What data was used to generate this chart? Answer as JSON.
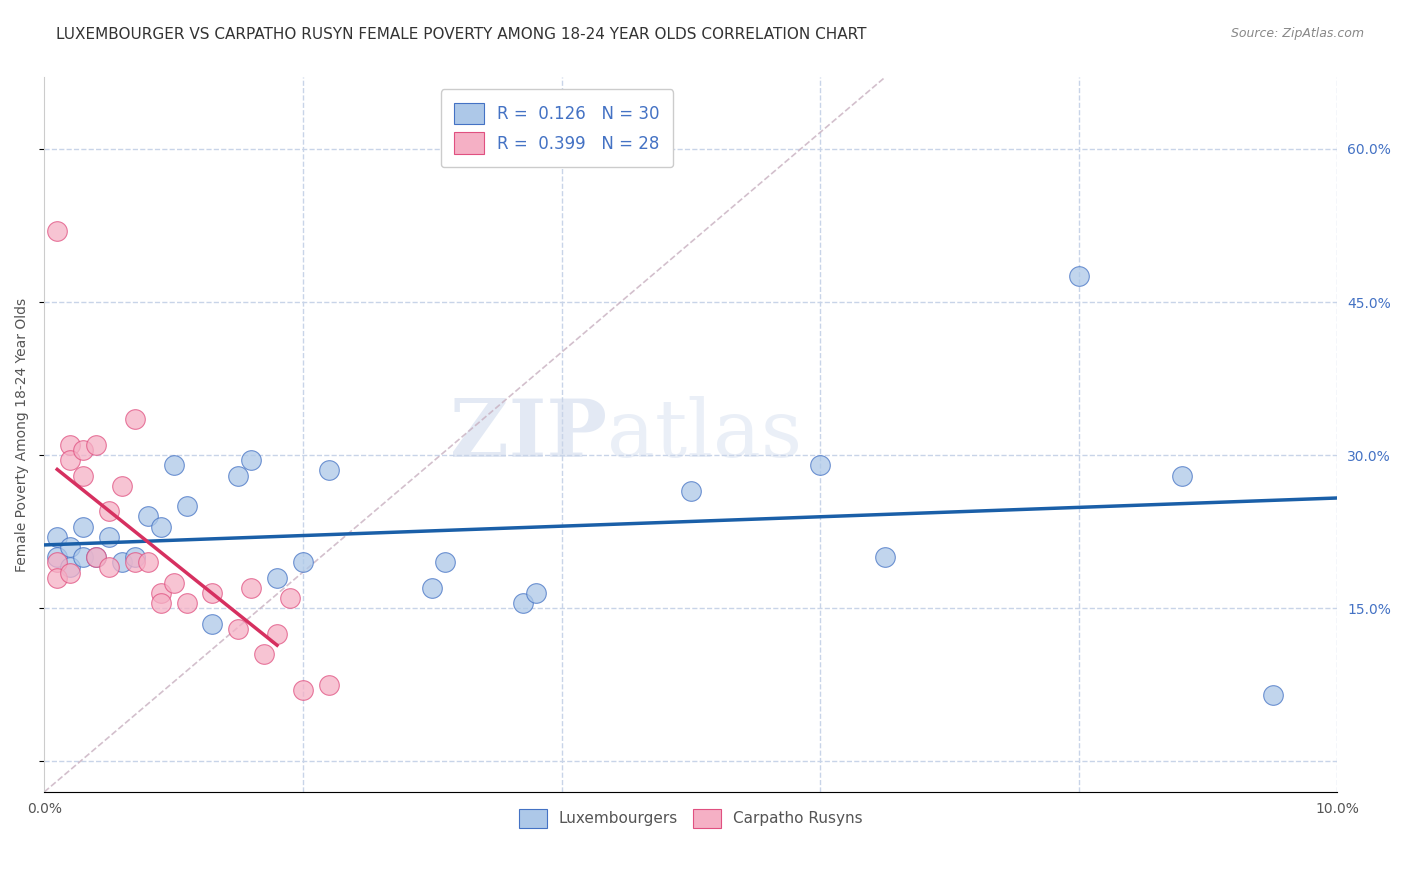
{
  "title": "LUXEMBOURGER VS CARPATHO RUSYN FEMALE POVERTY AMONG 18-24 YEAR OLDS CORRELATION CHART",
  "source": "Source: ZipAtlas.com",
  "ylabel": "Female Poverty Among 18-24 Year Olds",
  "xlim": [
    0.0,
    0.1
  ],
  "ylim": [
    -0.03,
    0.67
  ],
  "xticks": [
    0.0,
    0.02,
    0.04,
    0.06,
    0.08,
    0.1
  ],
  "xticklabels": [
    "0.0%",
    "",
    "",
    "",
    "",
    "10.0%"
  ],
  "yticks_right": [
    0.0,
    0.15,
    0.3,
    0.45,
    0.6
  ],
  "yticklabels_right": [
    "",
    "15.0%",
    "30.0%",
    "45.0%",
    "60.0%"
  ],
  "blue_R": 0.126,
  "blue_N": 30,
  "pink_R": 0.399,
  "pink_N": 28,
  "blue_fill": "#adc8e8",
  "pink_fill": "#f5b0c5",
  "blue_edge": "#4472c4",
  "pink_edge": "#e05080",
  "blue_line_color": "#1a5fa8",
  "pink_line_color": "#d63060",
  "ref_line_color": "#c8b0c0",
  "blue_scatter_x": [
    0.001,
    0.001,
    0.002,
    0.002,
    0.003,
    0.003,
    0.004,
    0.005,
    0.006,
    0.007,
    0.008,
    0.009,
    0.01,
    0.011,
    0.013,
    0.015,
    0.016,
    0.018,
    0.02,
    0.022,
    0.03,
    0.031,
    0.037,
    0.038,
    0.05,
    0.06,
    0.065,
    0.08,
    0.088,
    0.095
  ],
  "blue_scatter_y": [
    0.22,
    0.2,
    0.21,
    0.19,
    0.23,
    0.2,
    0.2,
    0.22,
    0.195,
    0.2,
    0.24,
    0.23,
    0.29,
    0.25,
    0.135,
    0.28,
    0.295,
    0.18,
    0.195,
    0.285,
    0.17,
    0.195,
    0.155,
    0.165,
    0.265,
    0.29,
    0.2,
    0.475,
    0.28,
    0.065
  ],
  "pink_scatter_x": [
    0.001,
    0.001,
    0.001,
    0.002,
    0.002,
    0.002,
    0.003,
    0.003,
    0.004,
    0.004,
    0.005,
    0.005,
    0.006,
    0.007,
    0.007,
    0.008,
    0.009,
    0.009,
    0.01,
    0.011,
    0.013,
    0.015,
    0.016,
    0.017,
    0.018,
    0.019,
    0.02,
    0.022
  ],
  "pink_scatter_y": [
    0.52,
    0.195,
    0.18,
    0.31,
    0.295,
    0.185,
    0.305,
    0.28,
    0.31,
    0.2,
    0.245,
    0.19,
    0.27,
    0.335,
    0.195,
    0.195,
    0.165,
    0.155,
    0.175,
    0.155,
    0.165,
    0.13,
    0.17,
    0.105,
    0.125,
    0.16,
    0.07,
    0.075
  ],
  "pink_line_x0": 0.001,
  "pink_line_x1": 0.018,
  "blue_line_x0": 0.0,
  "blue_line_x1": 0.1,
  "blue_line_y0": 0.212,
  "blue_line_y1": 0.258,
  "watermark_zip": "ZIP",
  "watermark_atlas": "atlas",
  "background_color": "#ffffff",
  "grid_color": "#c8d4e8",
  "title_fontsize": 11,
  "axis_label_fontsize": 10,
  "marker_size": 200
}
